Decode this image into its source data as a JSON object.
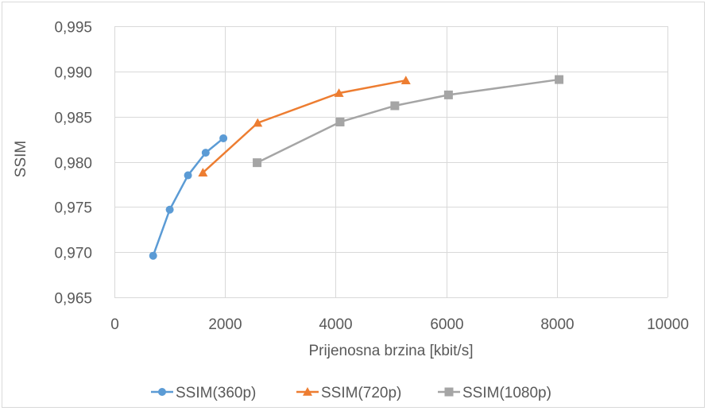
{
  "chart_data": {
    "type": "line",
    "title": "",
    "xlabel": "Prijenosna brzina [kbit/s]",
    "ylabel": "SSIM",
    "xlim": [
      0,
      10000
    ],
    "ylim": [
      0.965,
      0.995
    ],
    "x_ticks": [
      0,
      2000,
      4000,
      6000,
      8000,
      10000
    ],
    "x_tick_labels": [
      "0",
      "2000",
      "4000",
      "6000",
      "8000",
      "10000"
    ],
    "y_ticks": [
      0.965,
      0.97,
      0.975,
      0.98,
      0.985,
      0.99,
      0.995
    ],
    "y_tick_labels": [
      "0,965",
      "0,970",
      "0,975",
      "0,980",
      "0,985",
      "0,990",
      "0,995"
    ],
    "grid": true,
    "legend_position": "bottom",
    "series": [
      {
        "name": "SSIM(360p)",
        "color": "#5B9BD5",
        "marker": "circle",
        "x": [
          700,
          1000,
          1330,
          1650,
          1970
        ],
        "y": [
          0.9696,
          0.9747,
          0.9785,
          0.981,
          0.9826
        ]
      },
      {
        "name": "SSIM(720p)",
        "color": "#ED7D31",
        "marker": "triangle",
        "x": [
          1600,
          2590,
          4060,
          5270
        ],
        "y": [
          0.9788,
          0.9843,
          0.9876,
          0.989
        ]
      },
      {
        "name": "SSIM(1080p)",
        "color": "#A5A5A5",
        "marker": "square",
        "x": [
          2580,
          4080,
          5070,
          6040,
          8040
        ],
        "y": [
          0.9799,
          0.9844,
          0.9862,
          0.9874,
          0.9891
        ]
      }
    ]
  }
}
